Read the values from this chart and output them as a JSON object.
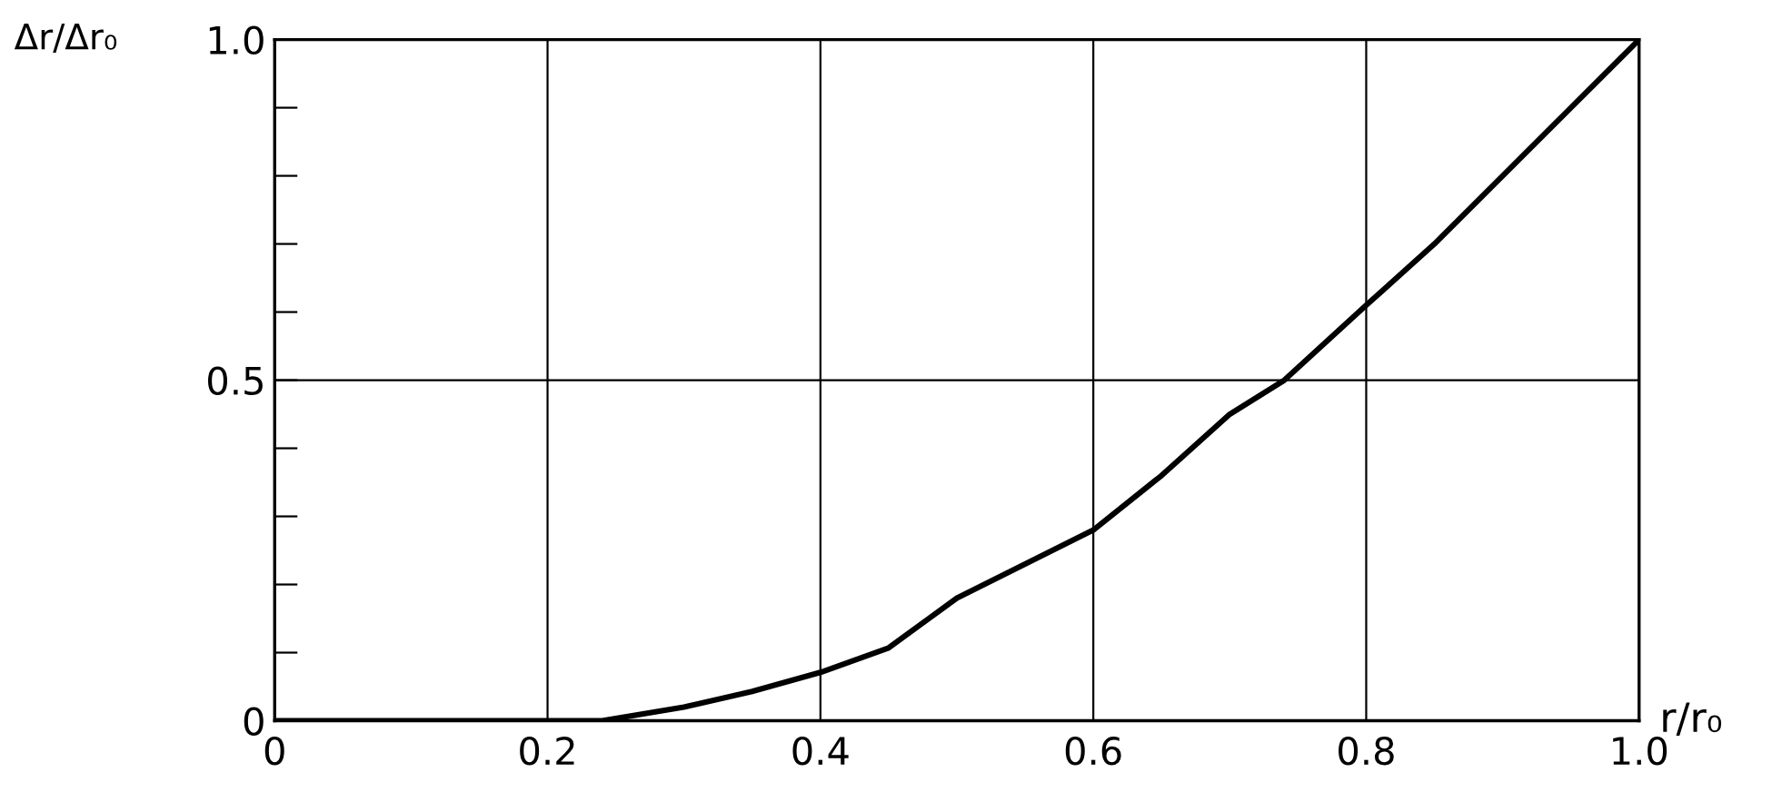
{
  "chart_data": {
    "type": "line",
    "xlabel": "r/r₀",
    "ylabel": "Δr/Δr₀",
    "x": [
      0,
      0.1,
      0.2,
      0.24,
      0.3,
      0.35,
      0.4,
      0.45,
      0.5,
      0.55,
      0.6,
      0.65,
      0.7,
      0.74,
      0.8,
      0.85,
      0.9,
      0.95,
      1.0
    ],
    "series": [
      {
        "color": "#000000",
        "values": [
          0,
          0,
          0,
          0,
          0.02,
          0.043,
          0.071,
          0.107,
          0.18,
          0.23,
          0.28,
          0.36,
          0.45,
          0.5,
          0.61,
          0.7,
          0.8,
          0.9,
          1.0
        ]
      }
    ],
    "xlim": [
      0,
      1.0
    ],
    "ylim": [
      0,
      1.0
    ],
    "xticks": [
      0,
      {
        "value": 0.2,
        "label": "0.2"
      },
      {
        "value": 0.4,
        "label": "0.4"
      },
      {
        "value": 0.6,
        "label": "0.6"
      },
      {
        "value": 0.8,
        "label": "0.8"
      },
      {
        "value": 1.0,
        "label": "1.0"
      }
    ],
    "yticks": [
      0,
      {
        "value": 0.1,
        "label": null
      },
      {
        "value": 0.2,
        "label": null
      },
      {
        "value": 0.3,
        "label": null
      },
      {
        "value": 0.4,
        "label": null
      },
      {
        "value": 0.5,
        "label": "0.5"
      },
      {
        "value": 0.6,
        "label": null
      },
      {
        "value": 0.7,
        "label": null
      },
      {
        "value": 0.8,
        "label": null
      },
      {
        "value": 0.9,
        "label": null
      },
      {
        "value": 1.0,
        "label": "1.0"
      }
    ],
    "grid": true,
    "marker": "none",
    "line_style": "solid"
  }
}
